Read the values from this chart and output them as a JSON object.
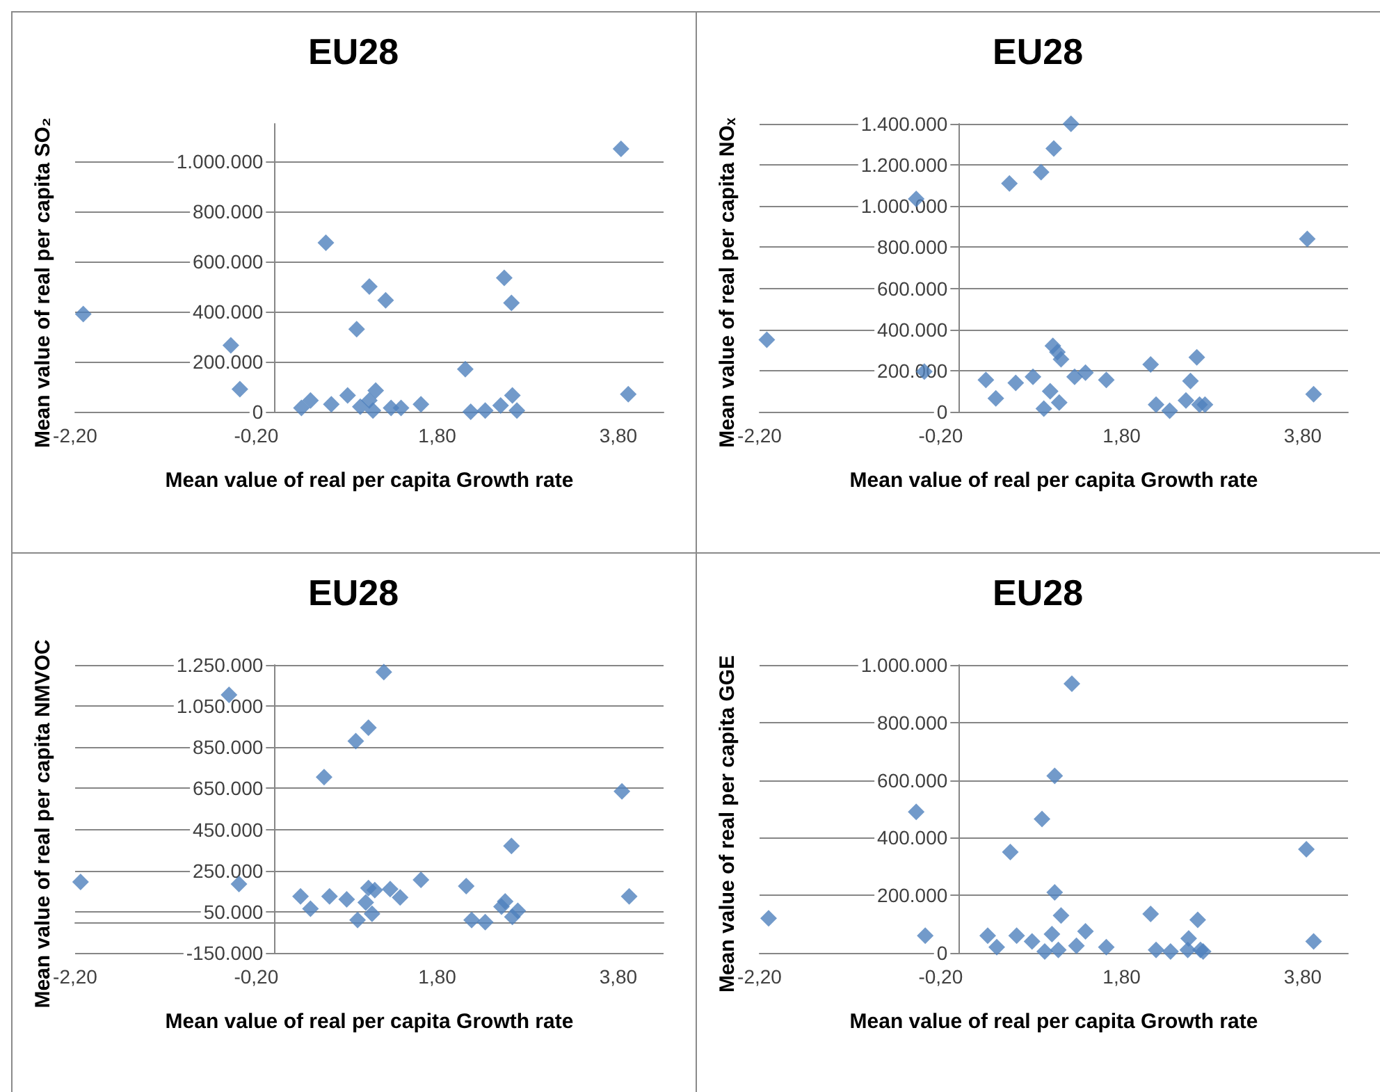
{
  "chart_data": [
    {
      "type": "scatter",
      "title": "EU28",
      "xlabel": "Mean value of real per capita Growth rate",
      "ylabel": "Mean value of real per capita SO₂",
      "color": "#4f81bd",
      "marker": "diamond",
      "grid": "y",
      "xlim": [
        -2.2,
        4.3
      ],
      "xticks": [
        {
          "value": -2.2,
          "label": "-2,20"
        },
        {
          "value": -0.2,
          "label": "-0,20"
        },
        {
          "value": 1.8,
          "label": "1,80"
        },
        {
          "value": 3.8,
          "label": "3,80"
        }
      ],
      "ylim": [
        0,
        1150000
      ],
      "yticks": [
        {
          "value": 0,
          "label": "0"
        },
        {
          "value": 200000,
          "label": "200.000"
        },
        {
          "value": 400000,
          "label": "400.000"
        },
        {
          "value": 600000,
          "label": "600.000"
        },
        {
          "value": 800000,
          "label": "800.000"
        },
        {
          "value": 1000000,
          "label": "1.000.000"
        }
      ],
      "x": [
        -2.11,
        -0.48,
        -0.38,
        0.3,
        0.4,
        0.57,
        0.63,
        0.81,
        0.91,
        0.95,
        1.05,
        1.05,
        1.09,
        1.12,
        1.23,
        1.29,
        1.4,
        1.62,
        2.11,
        2.17,
        2.33,
        2.5,
        2.54,
        2.62,
        2.63,
        2.68,
        3.83,
        3.91
      ],
      "values": [
        390000,
        265000,
        90000,
        15000,
        45000,
        675000,
        30000,
        65000,
        330000,
        20000,
        500000,
        45000,
        5000,
        85000,
        445000,
        15000,
        15000,
        30000,
        170000,
        0,
        5000,
        25000,
        535000,
        435000,
        65000,
        5000,
        1050000,
        70000
      ]
    },
    {
      "type": "scatter",
      "title": "EU28",
      "xlabel": "Mean value of real per capita Growth rate",
      "ylabel": "Mean value of real per capita NOₓ",
      "color": "#4f81bd",
      "marker": "diamond",
      "grid": "y",
      "xlim": [
        -2.2,
        4.3
      ],
      "xticks": [
        {
          "value": -2.2,
          "label": "-2,20"
        },
        {
          "value": -0.2,
          "label": "-0,20"
        },
        {
          "value": 1.8,
          "label": "1,80"
        },
        {
          "value": 3.8,
          "label": "3,80"
        }
      ],
      "ylim": [
        0,
        1400000
      ],
      "yticks": [
        {
          "value": 0,
          "label": "0"
        },
        {
          "value": 200000,
          "label": "200.000"
        },
        {
          "value": 400000,
          "label": "400.000"
        },
        {
          "value": 600000,
          "label": "600.000"
        },
        {
          "value": 800000,
          "label": "800.000"
        },
        {
          "value": 1000000,
          "label": "1.000.000"
        },
        {
          "value": 1200000,
          "label": "1.200.000"
        },
        {
          "value": 1400000,
          "label": "1.400.000"
        }
      ],
      "x": [
        -2.12,
        -0.47,
        -0.38,
        0.3,
        0.41,
        0.56,
        0.63,
        0.82,
        0.91,
        0.94,
        1.01,
        1.04,
        1.05,
        1.09,
        1.11,
        1.13,
        1.24,
        1.28,
        1.4,
        1.63,
        2.12,
        2.18,
        2.33,
        2.51,
        2.56,
        2.63,
        2.66,
        2.72,
        3.85,
        3.92
      ],
      "values": [
        350000,
        1035000,
        195000,
        155000,
        65000,
        1110000,
        140000,
        170000,
        1165000,
        15000,
        100000,
        320000,
        1280000,
        290000,
        45000,
        255000,
        1400000,
        170000,
        190000,
        155000,
        230000,
        35000,
        5000,
        55000,
        150000,
        265000,
        35000,
        35000,
        840000,
        85000
      ]
    },
    {
      "type": "scatter",
      "title": "EU28",
      "xlabel": "Mean value of real per capita Growth rate",
      "ylabel": "Mean value of real per capita NMVOC",
      "color": "#4f81bd",
      "marker": "diamond",
      "grid": "y",
      "xlim": [
        -2.2,
        4.3
      ],
      "xticks": [
        {
          "value": -2.2,
          "label": "-2,20"
        },
        {
          "value": -0.2,
          "label": "-0,20"
        },
        {
          "value": 1.8,
          "label": "1,80"
        },
        {
          "value": 3.8,
          "label": "3,80"
        }
      ],
      "ylim": [
        -150000,
        1250000
      ],
      "yticks": [
        {
          "value": -150000,
          "label": "-150.000"
        },
        {
          "value": 50000,
          "label": "50.000"
        },
        {
          "value": 250000,
          "label": "250.000"
        },
        {
          "value": 450000,
          "label": "450.000"
        },
        {
          "value": 650000,
          "label": "650.000"
        },
        {
          "value": 850000,
          "label": "850.000"
        },
        {
          "value": 1050000,
          "label": "1.050.000"
        },
        {
          "value": 1250000,
          "label": "1.250.000"
        }
      ],
      "x": [
        -2.14,
        -0.5,
        -0.39,
        0.29,
        0.4,
        0.55,
        0.61,
        0.8,
        0.9,
        0.92,
        1.01,
        1.04,
        1.04,
        1.08,
        1.11,
        1.21,
        1.28,
        1.39,
        1.62,
        2.12,
        2.18,
        2.33,
        2.51,
        2.55,
        2.62,
        2.63,
        2.69,
        3.84,
        3.92
      ],
      "values": [
        195000,
        1105000,
        185000,
        125000,
        65000,
        705000,
        125000,
        110000,
        880000,
        10000,
        95000,
        165000,
        945000,
        40000,
        155000,
        1215000,
        160000,
        120000,
        205000,
        175000,
        10000,
        0,
        75000,
        100000,
        370000,
        25000,
        55000,
        635000,
        125000
      ]
    },
    {
      "type": "scatter",
      "title": "EU28",
      "xlabel": "Mean value of real per capita Growth rate",
      "ylabel": "Mean value of real per capita GGE",
      "color": "#4f81bd",
      "marker": "diamond",
      "grid": "y",
      "xlim": [
        -2.2,
        4.3
      ],
      "xticks": [
        {
          "value": -2.2,
          "label": "-2,20"
        },
        {
          "value": -0.2,
          "label": "-0,20"
        },
        {
          "value": 1.8,
          "label": "1,80"
        },
        {
          "value": 3.8,
          "label": "3,80"
        }
      ],
      "ylim": [
        0,
        1000000
      ],
      "yticks": [
        {
          "value": 0,
          "label": "0"
        },
        {
          "value": 200000,
          "label": "200.000"
        },
        {
          "value": 400000,
          "label": "400.000"
        },
        {
          "value": 600000,
          "label": "600.000"
        },
        {
          "value": 800000,
          "label": "800.000"
        },
        {
          "value": 1000000,
          "label": "1.000.000"
        }
      ],
      "x": [
        -2.1,
        -0.47,
        -0.37,
        0.32,
        0.42,
        0.57,
        0.64,
        0.81,
        0.92,
        0.95,
        1.03,
        1.06,
        1.06,
        1.1,
        1.13,
        1.25,
        1.3,
        1.4,
        1.63,
        2.12,
        2.18,
        2.34,
        2.53,
        2.54,
        2.64,
        2.67,
        2.7,
        3.84,
        3.92
      ],
      "values": [
        120000,
        490000,
        60000,
        60000,
        20000,
        350000,
        60000,
        40000,
        465000,
        5000,
        65000,
        615000,
        210000,
        10000,
        130000,
        935000,
        25000,
        75000,
        20000,
        135000,
        10000,
        5000,
        10000,
        50000,
        115000,
        10000,
        5000,
        360000,
        40000
      ]
    }
  ]
}
